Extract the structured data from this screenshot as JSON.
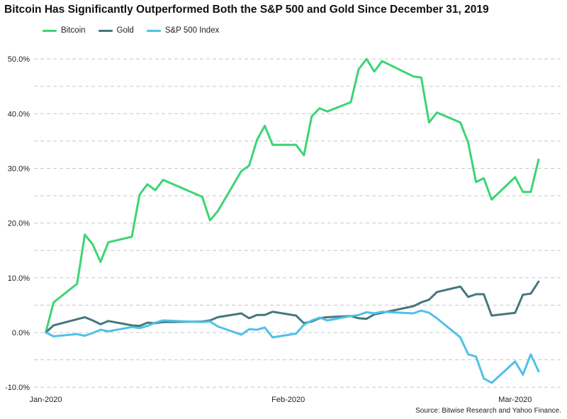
{
  "chart_data": {
    "type": "line",
    "title": "Bitcoin Has Significantly Outperformed Both the S&P 500 and Gold Since December 31, 2019",
    "source": "Source: Bitwise Research and Yahoo Finance.",
    "xlabel": "",
    "ylabel": "",
    "x_ticks": [
      {
        "label": "Jan-2020",
        "day": 0
      },
      {
        "label": "Feb-2020",
        "day": 31
      },
      {
        "label": "Mar-2020",
        "day": 60
      }
    ],
    "y_ticks": [
      "-10.0%",
      "0.0%",
      "10.0%",
      "20.0%",
      "30.0%",
      "40.0%",
      "50.0%"
    ],
    "ylim": [
      -10.5,
      53
    ],
    "xlim": [
      -1.5,
      66
    ],
    "grid": true,
    "legend_position": "top-left",
    "series": [
      {
        "name": "Bitcoin",
        "color": "#3dd474",
        "points": [
          [
            0,
            0
          ],
          [
            1,
            5.5
          ],
          [
            4,
            8.9
          ],
          [
            5,
            17.9
          ],
          [
            6,
            16.1
          ],
          [
            7,
            12.9
          ],
          [
            8,
            16.5
          ],
          [
            11,
            17.5
          ],
          [
            12,
            25.2
          ],
          [
            13,
            27.1
          ],
          [
            14,
            26.0
          ],
          [
            15,
            27.9
          ],
          [
            20,
            24.8
          ],
          [
            21,
            20.5
          ],
          [
            22,
            22.2
          ],
          [
            25,
            29.5
          ],
          [
            26,
            30.5
          ],
          [
            27,
            35.2
          ],
          [
            28,
            37.8
          ],
          [
            29,
            34.3
          ],
          [
            32,
            34.3
          ],
          [
            33,
            32.4
          ],
          [
            34,
            39.5
          ],
          [
            35,
            41.0
          ],
          [
            36,
            40.4
          ],
          [
            39,
            42.1
          ],
          [
            40,
            48.1
          ],
          [
            41,
            50.0
          ],
          [
            42,
            47.7
          ],
          [
            43,
            49.6
          ],
          [
            47,
            46.8
          ],
          [
            48,
            46.6
          ],
          [
            49,
            38.4
          ],
          [
            50,
            40.2
          ],
          [
            53,
            38.4
          ],
          [
            54,
            34.7
          ],
          [
            55,
            27.5
          ],
          [
            56,
            28.2
          ],
          [
            57,
            24.3
          ],
          [
            60,
            28.4
          ],
          [
            61,
            25.7
          ],
          [
            62,
            25.7
          ],
          [
            63,
            31.6
          ]
        ]
      },
      {
        "name": "Gold",
        "color": "#44777e",
        "points": [
          [
            0,
            0
          ],
          [
            1,
            1.3
          ],
          [
            5,
            2.8
          ],
          [
            6,
            2.2
          ],
          [
            7,
            1.5
          ],
          [
            8,
            2.1
          ],
          [
            11,
            1.3
          ],
          [
            12,
            1.2
          ],
          [
            13,
            1.8
          ],
          [
            14,
            1.7
          ],
          [
            15,
            1.9
          ],
          [
            20,
            2.0
          ],
          [
            21,
            2.2
          ],
          [
            22,
            2.8
          ],
          [
            25,
            3.5
          ],
          [
            26,
            2.6
          ],
          [
            27,
            3.2
          ],
          [
            28,
            3.2
          ],
          [
            29,
            3.8
          ],
          [
            32,
            3.1
          ],
          [
            33,
            1.7
          ],
          [
            34,
            2.0
          ],
          [
            35,
            2.6
          ],
          [
            36,
            2.8
          ],
          [
            39,
            3.0
          ],
          [
            40,
            2.6
          ],
          [
            41,
            2.5
          ],
          [
            42,
            3.3
          ],
          [
            43,
            3.6
          ],
          [
            47,
            4.8
          ],
          [
            48,
            5.5
          ],
          [
            49,
            6.0
          ],
          [
            50,
            7.4
          ],
          [
            53,
            8.4
          ],
          [
            54,
            6.5
          ],
          [
            55,
            7.0
          ],
          [
            56,
            7.0
          ],
          [
            57,
            3.1
          ],
          [
            60,
            3.6
          ],
          [
            61,
            6.9
          ],
          [
            62,
            7.1
          ],
          [
            63,
            9.3
          ]
        ]
      },
      {
        "name": "S&P 500 Index",
        "color": "#4fc1e8",
        "points": [
          [
            0,
            0
          ],
          [
            1,
            -0.7
          ],
          [
            4,
            -0.3
          ],
          [
            5,
            -0.6
          ],
          [
            6,
            -0.1
          ],
          [
            7,
            0.5
          ],
          [
            8,
            0.2
          ],
          [
            11,
            1.0
          ],
          [
            12,
            0.8
          ],
          [
            13,
            1.2
          ],
          [
            14,
            1.8
          ],
          [
            15,
            2.2
          ],
          [
            20,
            1.9
          ],
          [
            21,
            2.0
          ],
          [
            22,
            1.1
          ],
          [
            25,
            -0.4
          ],
          [
            26,
            0.6
          ],
          [
            27,
            0.5
          ],
          [
            28,
            0.9
          ],
          [
            29,
            -0.9
          ],
          [
            32,
            -0.2
          ],
          [
            33,
            1.4
          ],
          [
            34,
            2.2
          ],
          [
            35,
            2.7
          ],
          [
            36,
            2.2
          ],
          [
            39,
            3.0
          ],
          [
            40,
            3.2
          ],
          [
            41,
            3.7
          ],
          [
            42,
            3.5
          ],
          [
            43,
            3.8
          ],
          [
            47,
            3.5
          ],
          [
            48,
            4.0
          ],
          [
            49,
            3.6
          ],
          [
            50,
            2.6
          ],
          [
            53,
            -0.9
          ],
          [
            54,
            -4.0
          ],
          [
            55,
            -4.4
          ],
          [
            56,
            -8.4
          ],
          [
            57,
            -9.2
          ],
          [
            60,
            -5.3
          ],
          [
            61,
            -7.7
          ],
          [
            62,
            -4.0
          ],
          [
            63,
            -7.1
          ]
        ]
      }
    ]
  }
}
